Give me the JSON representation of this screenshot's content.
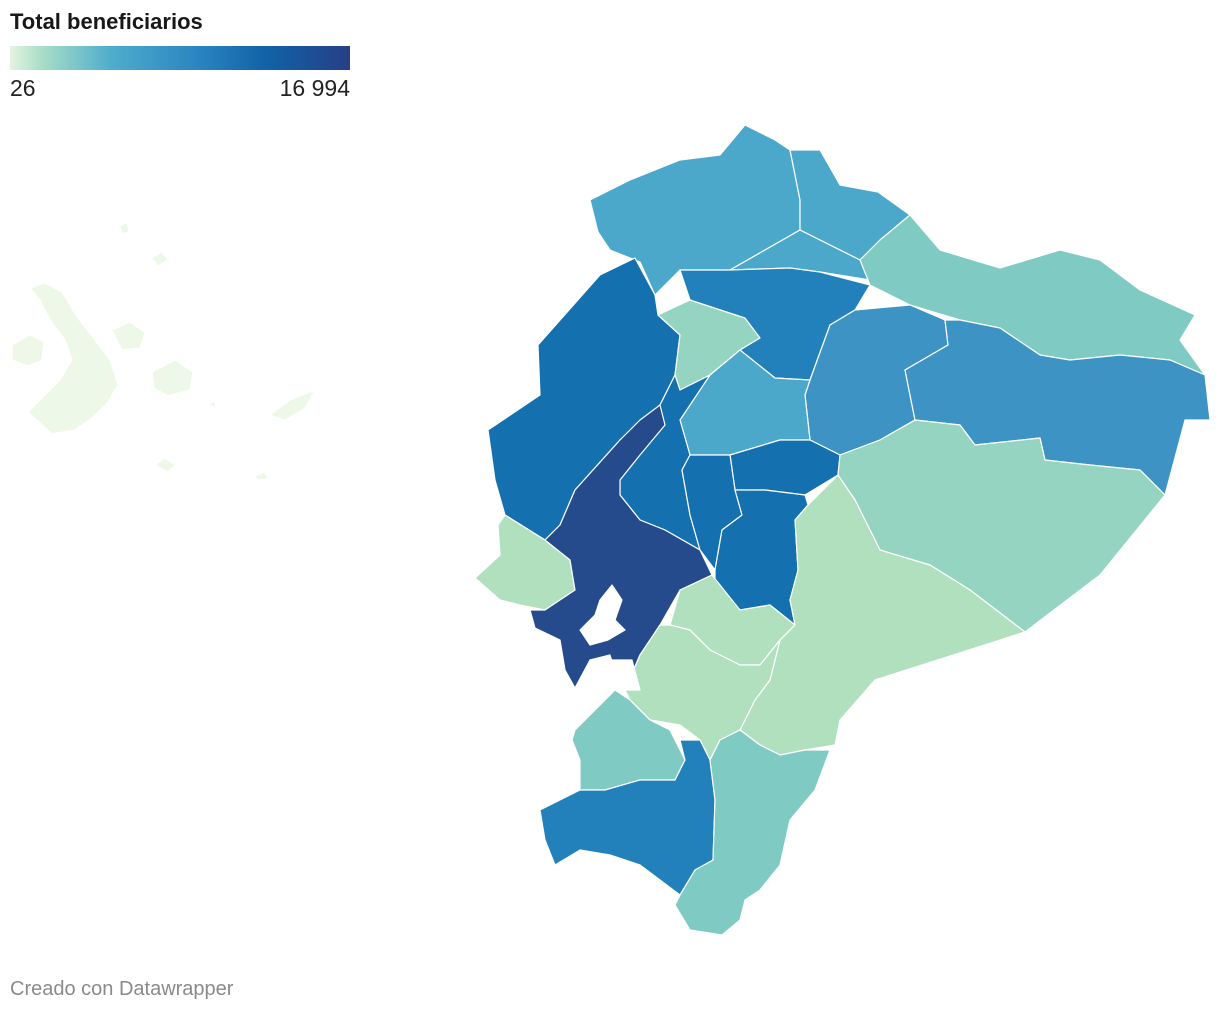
{
  "legend": {
    "title": "Total beneficiarios",
    "min_label": "26",
    "max_label": "16 994",
    "colors": [
      "#e3f4df",
      "#a6dcc8",
      "#4eaccd",
      "#2b85c1",
      "#1163a8",
      "#273f86"
    ]
  },
  "footer": {
    "credit": "Creado con Datawrapper"
  },
  "map_colors": {
    "darkest": "#264b8c",
    "dark": "#1570b0",
    "mid_dark": "#2280bb",
    "mid": "#3d93c4",
    "light_blue": "#4ba8cb",
    "teal": "#7fcbc4",
    "light_teal": "#95d4c1",
    "pale_green": "#b1e0bf",
    "palest": "#eef8e8"
  }
}
